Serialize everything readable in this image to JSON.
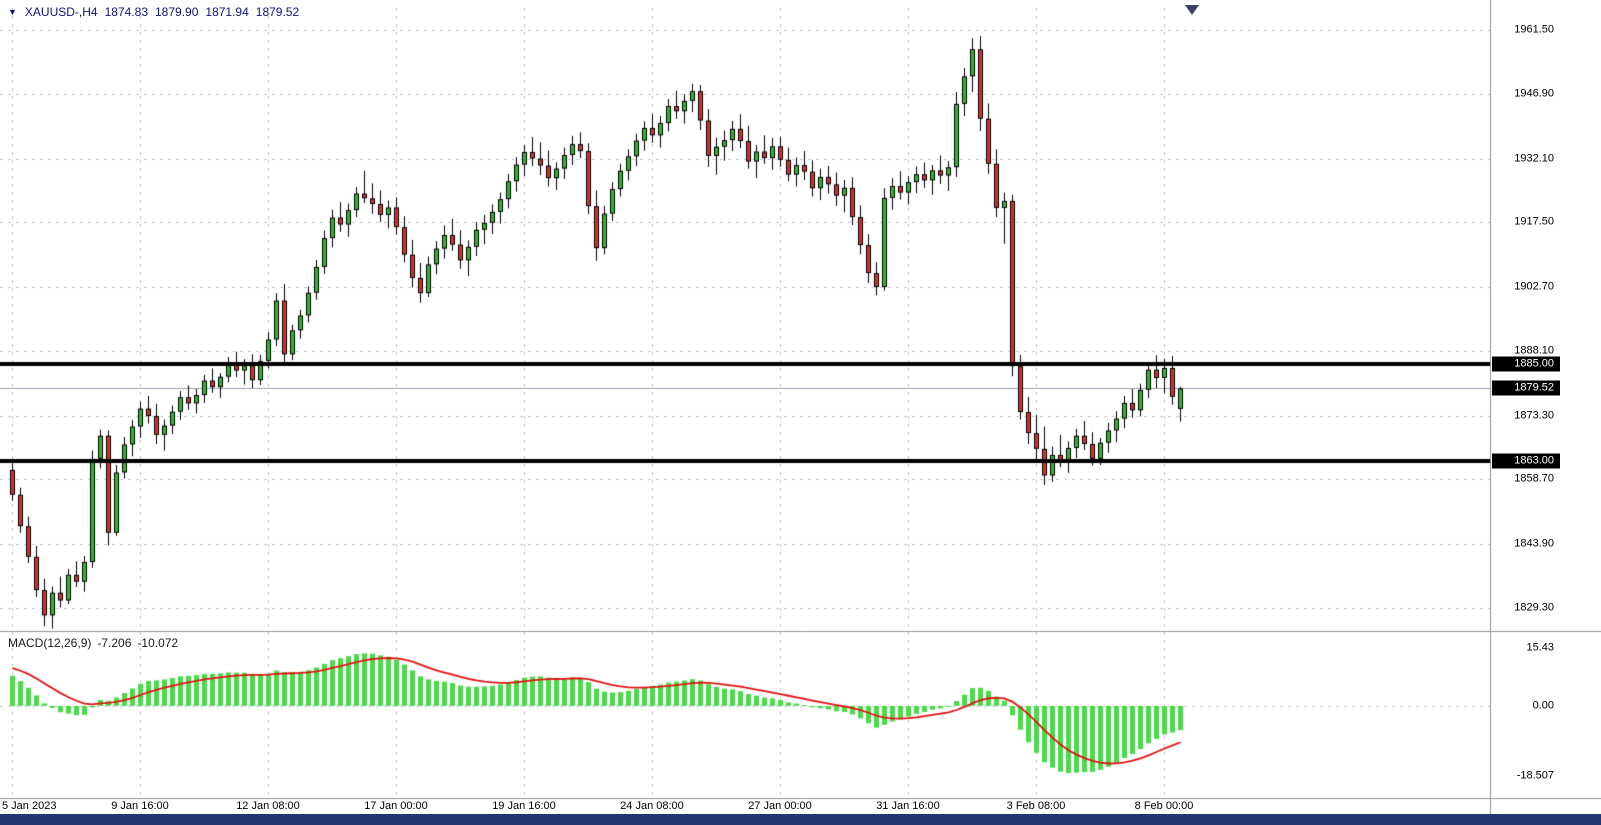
{
  "header": {
    "expander_icon": "▼",
    "symbol_period": "XAUUSD-,H4",
    "open": "1874.83",
    "high": "1879.90",
    "low": "1871.94",
    "close": "1879.52"
  },
  "macd_label": {
    "name": "MACD(12,26,9)",
    "main_value": "-7.206",
    "signal_value": "-10.072"
  },
  "colors": {
    "background": "#ffffff",
    "grid": "#c3c7d0",
    "bull": "#2db92d",
    "bear": "#d63131",
    "candle_outline": "#000000",
    "macd_bar": "#4cd94c",
    "macd_signal": "#e11212",
    "hline": "#000000",
    "bid_line": "#9aa2ac",
    "badge_bg": "#000000",
    "badge_text": "#ffffff",
    "title_text": "#11117c",
    "macd_label_text": "#1a1a1a",
    "axis_text": "#000000",
    "separator": "#8e939b",
    "bottom_bar": "#23366f",
    "shift_marker": "#3d4066"
  },
  "chart_data": {
    "type": "candlestick",
    "symbol": "XAUUSD-",
    "timeframe": "H4",
    "title": "XAUUSD- H4 candlestick chart with MACD(12,26,9) sub-window",
    "current_bar": {
      "open": 1874.83,
      "high": 1879.9,
      "low": 1871.94,
      "close": 1879.52
    },
    "price_panel": {
      "grid": true,
      "ylim": [
        1824.26,
        1966.53
      ],
      "ytick_labels": [
        "1961.50",
        "1946.90",
        "1932.10",
        "1917.50",
        "1902.70",
        "1888.10",
        "1873.30",
        "1858.70",
        "1843.90",
        "1829.30"
      ],
      "horizontal_lines": [
        {
          "price": 1885.0,
          "label": "1885.00"
        },
        {
          "price": 1863.0,
          "label": "1863.00"
        }
      ],
      "bid": {
        "price": 1879.52,
        "label": "1879.52"
      }
    },
    "x_axis": {
      "tick_labels": [
        {
          "candle_index": 0,
          "text": "5 Jan 2023"
        },
        {
          "candle_index": 16,
          "text": "9 Jan 16:00"
        },
        {
          "candle_index": 32,
          "text": "12 Jan 08:00"
        },
        {
          "candle_index": 48,
          "text": "17 Jan 00:00"
        },
        {
          "candle_index": 64,
          "text": "19 Jan 16:00"
        },
        {
          "candle_index": 80,
          "text": "24 Jan 08:00"
        },
        {
          "candle_index": 96,
          "text": "27 Jan 00:00"
        },
        {
          "candle_index": 112,
          "text": "31 Jan 16:00"
        },
        {
          "candle_index": 128,
          "text": "3 Feb 08:00"
        },
        {
          "candle_index": 144,
          "text": "8 Feb 00:00"
        }
      ]
    },
    "candles_ohlc": [
      [
        1860.9,
        1862.4,
        1853.8,
        1855.2
      ],
      [
        1855.2,
        1856.8,
        1846.5,
        1848.0
      ],
      [
        1848.0,
        1850.2,
        1839.6,
        1841.0
      ],
      [
        1841.0,
        1843.5,
        1831.8,
        1833.4
      ],
      [
        1833.4,
        1836.0,
        1825.1,
        1827.6
      ],
      [
        1827.6,
        1834.2,
        1824.6,
        1832.8
      ],
      [
        1832.8,
        1836.5,
        1829.4,
        1831.0
      ],
      [
        1831.0,
        1838.2,
        1830.2,
        1836.9
      ],
      [
        1836.9,
        1840.0,
        1834.1,
        1835.3
      ],
      [
        1835.3,
        1841.2,
        1833.0,
        1839.8
      ],
      [
        1839.8,
        1865.3,
        1838.5,
        1863.4
      ],
      [
        1863.4,
        1870.1,
        1861.2,
        1868.7
      ],
      [
        1868.7,
        1869.9,
        1843.6,
        1846.5
      ],
      [
        1846.5,
        1862.0,
        1845.8,
        1860.3
      ],
      [
        1860.3,
        1868.4,
        1858.9,
        1866.7
      ],
      [
        1866.7,
        1872.3,
        1864.0,
        1870.8
      ],
      [
        1870.8,
        1876.5,
        1868.2,
        1874.9
      ],
      [
        1874.9,
        1877.8,
        1871.5,
        1873.2
      ],
      [
        1873.2,
        1876.0,
        1866.8,
        1868.9
      ],
      [
        1868.9,
        1872.4,
        1865.3,
        1871.0
      ],
      [
        1871.0,
        1875.6,
        1869.1,
        1874.2
      ],
      [
        1874.2,
        1878.9,
        1872.3,
        1877.5
      ],
      [
        1877.5,
        1880.2,
        1874.6,
        1876.1
      ],
      [
        1876.1,
        1879.4,
        1873.8,
        1878.0
      ],
      [
        1878.0,
        1882.6,
        1876.2,
        1881.3
      ],
      [
        1881.3,
        1884.1,
        1878.5,
        1879.8
      ],
      [
        1879.8,
        1883.0,
        1877.4,
        1882.2
      ],
      [
        1882.2,
        1886.7,
        1880.9,
        1885.4
      ],
      [
        1885.4,
        1887.9,
        1882.1,
        1883.6
      ],
      [
        1883.6,
        1886.2,
        1880.4,
        1884.8
      ],
      [
        1884.8,
        1887.3,
        1879.6,
        1881.4
      ],
      [
        1881.4,
        1887.2,
        1880.3,
        1885.8
      ],
      [
        1885.8,
        1892.4,
        1884.1,
        1890.7
      ],
      [
        1890.7,
        1901.3,
        1889.2,
        1899.6
      ],
      [
        1899.6,
        1903.4,
        1884.9,
        1887.3
      ],
      [
        1887.3,
        1894.1,
        1886.0,
        1892.8
      ],
      [
        1892.8,
        1897.5,
        1890.9,
        1896.2
      ],
      [
        1896.2,
        1902.8,
        1894.6,
        1901.4
      ],
      [
        1901.4,
        1908.9,
        1899.8,
        1907.3
      ],
      [
        1907.3,
        1915.6,
        1905.7,
        1913.9
      ],
      [
        1913.9,
        1920.4,
        1911.8,
        1918.6
      ],
      [
        1918.6,
        1922.1,
        1915.3,
        1917.0
      ],
      [
        1917.0,
        1921.8,
        1914.2,
        1920.3
      ],
      [
        1920.3,
        1925.6,
        1918.7,
        1924.1
      ],
      [
        1924.1,
        1929.3,
        1921.9,
        1923.0
      ],
      [
        1923.0,
        1926.4,
        1919.5,
        1921.7
      ],
      [
        1921.7,
        1924.8,
        1917.6,
        1919.2
      ],
      [
        1919.2,
        1922.5,
        1916.1,
        1920.9
      ],
      [
        1920.9,
        1923.2,
        1914.7,
        1916.4
      ],
      [
        1916.4,
        1918.9,
        1908.3,
        1910.1
      ],
      [
        1910.1,
        1913.5,
        1902.6,
        1904.8
      ],
      [
        1904.8,
        1908.2,
        1899.1,
        1901.3
      ],
      [
        1901.3,
        1909.7,
        1900.4,
        1907.9
      ],
      [
        1907.9,
        1913.2,
        1905.6,
        1911.5
      ],
      [
        1911.5,
        1916.8,
        1909.2,
        1914.6
      ],
      [
        1914.6,
        1918.3,
        1911.0,
        1912.4
      ],
      [
        1912.4,
        1915.7,
        1906.9,
        1908.8
      ],
      [
        1908.8,
        1913.4,
        1905.2,
        1911.9
      ],
      [
        1911.9,
        1917.6,
        1909.8,
        1915.8
      ],
      [
        1915.8,
        1919.2,
        1912.5,
        1917.4
      ],
      [
        1917.4,
        1921.6,
        1914.8,
        1919.9
      ],
      [
        1919.9,
        1924.3,
        1917.2,
        1922.8
      ],
      [
        1922.8,
        1928.6,
        1920.7,
        1926.9
      ],
      [
        1926.9,
        1932.4,
        1924.5,
        1930.7
      ],
      [
        1930.7,
        1935.2,
        1928.1,
        1933.6
      ],
      [
        1933.6,
        1937.0,
        1930.4,
        1932.1
      ],
      [
        1932.1,
        1935.8,
        1928.3,
        1930.5
      ],
      [
        1930.5,
        1933.9,
        1925.7,
        1927.6
      ],
      [
        1927.6,
        1931.2,
        1924.9,
        1929.8
      ],
      [
        1929.8,
        1934.6,
        1927.4,
        1932.9
      ],
      [
        1932.9,
        1937.3,
        1930.6,
        1935.4
      ],
      [
        1935.4,
        1938.1,
        1932.2,
        1933.8
      ],
      [
        1933.8,
        1935.6,
        1919.4,
        1921.2
      ],
      [
        1921.2,
        1924.8,
        1908.7,
        1911.6
      ],
      [
        1911.6,
        1921.3,
        1910.2,
        1919.5
      ],
      [
        1919.5,
        1926.7,
        1917.8,
        1925.1
      ],
      [
        1925.1,
        1930.9,
        1923.4,
        1929.3
      ],
      [
        1929.3,
        1934.2,
        1927.1,
        1932.6
      ],
      [
        1932.6,
        1937.8,
        1930.4,
        1936.2
      ],
      [
        1936.2,
        1940.6,
        1933.9,
        1939.1
      ],
      [
        1939.1,
        1942.3,
        1935.7,
        1937.4
      ],
      [
        1937.4,
        1941.8,
        1934.6,
        1940.2
      ],
      [
        1940.2,
        1945.7,
        1938.3,
        1944.1
      ],
      [
        1944.1,
        1947.6,
        1941.2,
        1942.9
      ],
      [
        1942.9,
        1946.8,
        1940.1,
        1945.3
      ],
      [
        1945.3,
        1949.2,
        1942.7,
        1947.5
      ],
      [
        1947.5,
        1948.9,
        1938.6,
        1940.8
      ],
      [
        1940.8,
        1943.4,
        1930.2,
        1932.7
      ],
      [
        1932.7,
        1936.9,
        1928.4,
        1934.8
      ],
      [
        1934.8,
        1938.5,
        1931.6,
        1936.3
      ],
      [
        1936.3,
        1940.7,
        1933.8,
        1938.9
      ],
      [
        1938.9,
        1942.2,
        1934.5,
        1936.1
      ],
      [
        1936.1,
        1939.6,
        1929.8,
        1931.4
      ],
      [
        1931.4,
        1935.2,
        1927.6,
        1933.7
      ],
      [
        1933.7,
        1937.4,
        1930.9,
        1932.2
      ],
      [
        1932.2,
        1936.8,
        1929.5,
        1934.9
      ],
      [
        1934.9,
        1937.1,
        1930.2,
        1931.8
      ],
      [
        1931.8,
        1934.6,
        1926.9,
        1928.4
      ],
      [
        1928.4,
        1932.3,
        1925.7,
        1930.6
      ],
      [
        1930.6,
        1933.8,
        1927.2,
        1929.1
      ],
      [
        1929.1,
        1931.7,
        1923.4,
        1925.3
      ],
      [
        1925.3,
        1929.8,
        1922.6,
        1927.9
      ],
      [
        1927.9,
        1930.4,
        1924.1,
        1926.2
      ],
      [
        1926.2,
        1928.9,
        1921.3,
        1923.6
      ],
      [
        1923.6,
        1927.2,
        1919.8,
        1925.4
      ],
      [
        1925.4,
        1927.8,
        1916.9,
        1918.7
      ],
      [
        1918.7,
        1921.4,
        1910.2,
        1912.3
      ],
      [
        1912.3,
        1914.8,
        1903.6,
        1905.9
      ],
      [
        1905.9,
        1908.4,
        1900.8,
        1902.7
      ],
      [
        1902.7,
        1925.3,
        1901.9,
        1923.1
      ],
      [
        1923.1,
        1927.6,
        1920.4,
        1925.8
      ],
      [
        1925.8,
        1929.2,
        1922.7,
        1924.3
      ],
      [
        1924.3,
        1928.1,
        1921.6,
        1926.7
      ],
      [
        1926.7,
        1930.3,
        1924.2,
        1928.5
      ],
      [
        1928.5,
        1931.2,
        1925.4,
        1927.1
      ],
      [
        1927.1,
        1930.6,
        1923.8,
        1929.4
      ],
      [
        1929.4,
        1932.8,
        1926.3,
        1928.2
      ],
      [
        1928.2,
        1931.5,
        1924.7,
        1930.1
      ],
      [
        1930.1,
        1947.3,
        1927.9,
        1944.6
      ],
      [
        1944.6,
        1952.8,
        1941.8,
        1950.9
      ],
      [
        1950.9,
        1959.6,
        1947.3,
        1957.1
      ],
      [
        1957.1,
        1960.1,
        1938.4,
        1941.2
      ],
      [
        1941.2,
        1944.7,
        1928.6,
        1930.9
      ],
      [
        1930.9,
        1934.2,
        1918.7,
        1920.8
      ],
      [
        1920.8,
        1924.3,
        1912.6,
        1922.4
      ],
      [
        1922.4,
        1923.8,
        1882.3,
        1884.6
      ],
      [
        1884.6,
        1887.2,
        1872.4,
        1874.1
      ],
      [
        1874.1,
        1877.6,
        1866.8,
        1869.3
      ],
      [
        1869.3,
        1873.5,
        1863.2,
        1865.7
      ],
      [
        1865.7,
        1870.8,
        1857.4,
        1859.6
      ],
      [
        1859.6,
        1866.2,
        1858.1,
        1864.3
      ],
      [
        1864.3,
        1868.9,
        1861.5,
        1862.8
      ],
      [
        1862.8,
        1867.4,
        1860.2,
        1865.9
      ],
      [
        1865.9,
        1870.3,
        1863.6,
        1868.7
      ],
      [
        1868.7,
        1872.1,
        1865.4,
        1866.8
      ],
      [
        1866.8,
        1869.5,
        1861.9,
        1863.4
      ],
      [
        1863.4,
        1868.2,
        1862.0,
        1867.1
      ],
      [
        1867.1,
        1871.6,
        1864.8,
        1869.9
      ],
      [
        1869.9,
        1874.3,
        1867.2,
        1872.6
      ],
      [
        1872.6,
        1877.8,
        1870.4,
        1876.2
      ],
      [
        1876.2,
        1879.4,
        1872.8,
        1874.5
      ],
      [
        1874.5,
        1880.6,
        1873.1,
        1879.2
      ],
      [
        1879.2,
        1885.4,
        1877.3,
        1883.8
      ],
      [
        1883.8,
        1887.1,
        1879.6,
        1881.9
      ],
      [
        1881.9,
        1886.3,
        1878.4,
        1884.2
      ],
      [
        1884.2,
        1886.9,
        1875.8,
        1877.6
      ],
      [
        1874.83,
        1879.9,
        1871.94,
        1879.52
      ]
    ],
    "macd_panel": {
      "type": "bar+line",
      "params": [
        12,
        26,
        9
      ],
      "ylim": [
        -24.4,
        19.6
      ],
      "ytick_labels": [
        "15.43",
        "0.00",
        "-18.507"
      ],
      "current_main": -7.206,
      "current_signal": -10.072
    }
  }
}
